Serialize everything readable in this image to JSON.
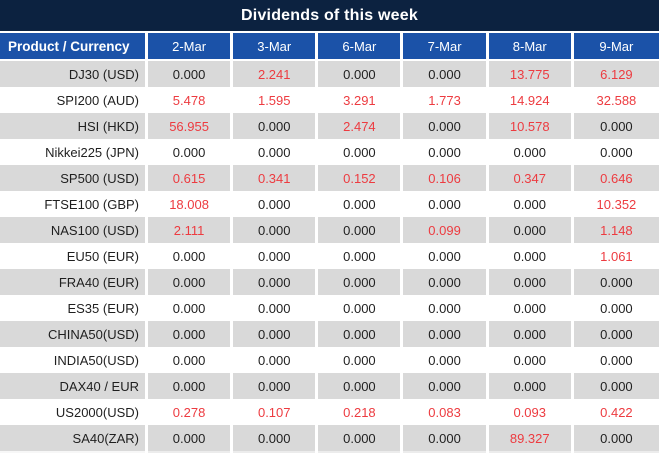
{
  "title": "Dividends of this week",
  "colors": {
    "title_bar_bg": "#0c2240",
    "header_bg": "#1b52a8",
    "row_alt_bg": "#d9d9d9",
    "row_bg": "#ffffff",
    "value_red": "#ed3b40",
    "value_black": "#1f1f1f"
  },
  "table": {
    "product_header": "Product / Currency",
    "date_headers": [
      "2-Mar",
      "3-Mar",
      "6-Mar",
      "7-Mar",
      "8-Mar",
      "9-Mar"
    ],
    "rows": [
      {
        "product": "DJ30 (USD)",
        "values": [
          "0.000",
          "2.241",
          "0.000",
          "0.000",
          "13.775",
          "6.129"
        ],
        "red": [
          false,
          true,
          false,
          false,
          true,
          true
        ]
      },
      {
        "product": "SPI200 (AUD)",
        "values": [
          "5.478",
          "1.595",
          "3.291",
          "1.773",
          "14.924",
          "32.588"
        ],
        "red": [
          true,
          true,
          true,
          true,
          true,
          true
        ]
      },
      {
        "product": "HSI (HKD)",
        "values": [
          "56.955",
          "0.000",
          "2.474",
          "0.000",
          "10.578",
          "0.000"
        ],
        "red": [
          true,
          false,
          true,
          false,
          true,
          false
        ]
      },
      {
        "product": "Nikkei225 (JPN)",
        "values": [
          "0.000",
          "0.000",
          "0.000",
          "0.000",
          "0.000",
          "0.000"
        ],
        "red": [
          false,
          false,
          false,
          false,
          false,
          false
        ]
      },
      {
        "product": "SP500 (USD)",
        "values": [
          "0.615",
          "0.341",
          "0.152",
          "0.106",
          "0.347",
          "0.646"
        ],
        "red": [
          true,
          true,
          true,
          true,
          true,
          true
        ]
      },
      {
        "product": "FTSE100 (GBP)",
        "values": [
          "18.008",
          "0.000",
          "0.000",
          "0.000",
          "0.000",
          "10.352"
        ],
        "red": [
          true,
          false,
          false,
          false,
          false,
          true
        ]
      },
      {
        "product": "NAS100 (USD)",
        "values": [
          "2.111",
          "0.000",
          "0.000",
          "0.099",
          "0.000",
          "1.148"
        ],
        "red": [
          true,
          false,
          false,
          true,
          false,
          true
        ]
      },
      {
        "product": "EU50 (EUR)",
        "values": [
          "0.000",
          "0.000",
          "0.000",
          "0.000",
          "0.000",
          "1.061"
        ],
        "red": [
          false,
          false,
          false,
          false,
          false,
          true
        ]
      },
      {
        "product": "FRA40 (EUR)",
        "values": [
          "0.000",
          "0.000",
          "0.000",
          "0.000",
          "0.000",
          "0.000"
        ],
        "red": [
          false,
          false,
          false,
          false,
          false,
          false
        ]
      },
      {
        "product": "ES35 (EUR)",
        "values": [
          "0.000",
          "0.000",
          "0.000",
          "0.000",
          "0.000",
          "0.000"
        ],
        "red": [
          false,
          false,
          false,
          false,
          false,
          false
        ]
      },
      {
        "product": "CHINA50(USD)",
        "values": [
          "0.000",
          "0.000",
          "0.000",
          "0.000",
          "0.000",
          "0.000"
        ],
        "red": [
          false,
          false,
          false,
          false,
          false,
          false
        ]
      },
      {
        "product": "INDIA50(USD)",
        "values": [
          "0.000",
          "0.000",
          "0.000",
          "0.000",
          "0.000",
          "0.000"
        ],
        "red": [
          false,
          false,
          false,
          false,
          false,
          false
        ]
      },
      {
        "product": "DAX40 / EUR",
        "values": [
          "0.000",
          "0.000",
          "0.000",
          "0.000",
          "0.000",
          "0.000"
        ],
        "red": [
          false,
          false,
          false,
          false,
          false,
          false
        ]
      },
      {
        "product": "US2000(USD)",
        "values": [
          "0.278",
          "0.107",
          "0.218",
          "0.083",
          "0.093",
          "0.422"
        ],
        "red": [
          true,
          true,
          true,
          true,
          true,
          true
        ]
      },
      {
        "product": "SA40(ZAR)",
        "values": [
          "0.000",
          "0.000",
          "0.000",
          "0.000",
          "89.327",
          "0.000"
        ],
        "red": [
          false,
          false,
          false,
          false,
          true,
          false
        ]
      }
    ]
  }
}
